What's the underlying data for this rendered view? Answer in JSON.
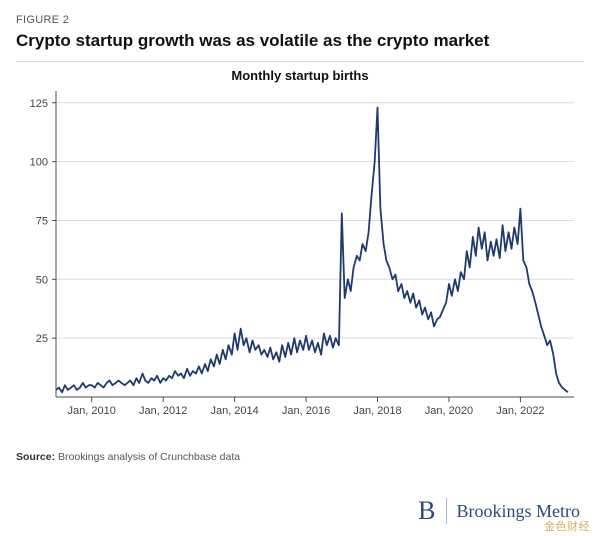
{
  "figure_label": "FIGURE 2",
  "title": "Crypto startup growth was as volatile as the crypto market",
  "chart": {
    "type": "line",
    "subtitle": "Monthly startup births",
    "x_label_year_prefix": "Jan, ",
    "x_ticks_years": [
      2010,
      2012,
      2014,
      2016,
      2018,
      2020,
      2022
    ],
    "x_range": [
      2009.0,
      2023.5
    ],
    "ylim": [
      0,
      130
    ],
    "y_ticks": [
      25,
      50,
      75,
      100,
      125
    ],
    "line_color": "#1f3a6e",
    "line_width": 1.8,
    "grid_color": "#d9dde2",
    "axis_color": "#4b4b4b",
    "background_color": "#ffffff",
    "tick_fontsize": 11,
    "subtitle_fontsize": 13,
    "series": [
      [
        2009.0,
        3
      ],
      [
        2009.08,
        4
      ],
      [
        2009.17,
        2
      ],
      [
        2009.25,
        5
      ],
      [
        2009.33,
        3
      ],
      [
        2009.42,
        4
      ],
      [
        2009.5,
        5
      ],
      [
        2009.58,
        3
      ],
      [
        2009.67,
        4
      ],
      [
        2009.75,
        6
      ],
      [
        2009.83,
        4
      ],
      [
        2009.92,
        5
      ],
      [
        2010.0,
        5
      ],
      [
        2010.08,
        4
      ],
      [
        2010.17,
        6
      ],
      [
        2010.25,
        5
      ],
      [
        2010.33,
        4
      ],
      [
        2010.42,
        6
      ],
      [
        2010.5,
        7
      ],
      [
        2010.58,
        5
      ],
      [
        2010.67,
        6
      ],
      [
        2010.75,
        7
      ],
      [
        2010.83,
        6
      ],
      [
        2010.92,
        5
      ],
      [
        2011.0,
        6
      ],
      [
        2011.08,
        7
      ],
      [
        2011.17,
        5
      ],
      [
        2011.25,
        8
      ],
      [
        2011.33,
        6
      ],
      [
        2011.42,
        10
      ],
      [
        2011.5,
        7
      ],
      [
        2011.58,
        6
      ],
      [
        2011.67,
        8
      ],
      [
        2011.75,
        7
      ],
      [
        2011.83,
        9
      ],
      [
        2011.92,
        6
      ],
      [
        2012.0,
        8
      ],
      [
        2012.08,
        7
      ],
      [
        2012.17,
        9
      ],
      [
        2012.25,
        8
      ],
      [
        2012.33,
        11
      ],
      [
        2012.42,
        9
      ],
      [
        2012.5,
        10
      ],
      [
        2012.58,
        8
      ],
      [
        2012.67,
        12
      ],
      [
        2012.75,
        9
      ],
      [
        2012.83,
        11
      ],
      [
        2012.92,
        10
      ],
      [
        2013.0,
        13
      ],
      [
        2013.08,
        10
      ],
      [
        2013.17,
        14
      ],
      [
        2013.25,
        11
      ],
      [
        2013.33,
        16
      ],
      [
        2013.42,
        13
      ],
      [
        2013.5,
        18
      ],
      [
        2013.58,
        14
      ],
      [
        2013.67,
        20
      ],
      [
        2013.75,
        16
      ],
      [
        2013.83,
        22
      ],
      [
        2013.92,
        18
      ],
      [
        2014.0,
        27
      ],
      [
        2014.08,
        20
      ],
      [
        2014.17,
        29
      ],
      [
        2014.25,
        22
      ],
      [
        2014.33,
        25
      ],
      [
        2014.42,
        19
      ],
      [
        2014.5,
        24
      ],
      [
        2014.58,
        20
      ],
      [
        2014.67,
        22
      ],
      [
        2014.75,
        18
      ],
      [
        2014.83,
        20
      ],
      [
        2014.92,
        17
      ],
      [
        2015.0,
        21
      ],
      [
        2015.08,
        16
      ],
      [
        2015.17,
        19
      ],
      [
        2015.25,
        15
      ],
      [
        2015.33,
        22
      ],
      [
        2015.42,
        17
      ],
      [
        2015.5,
        23
      ],
      [
        2015.58,
        18
      ],
      [
        2015.67,
        25
      ],
      [
        2015.75,
        19
      ],
      [
        2015.83,
        24
      ],
      [
        2015.92,
        20
      ],
      [
        2016.0,
        26
      ],
      [
        2016.08,
        20
      ],
      [
        2016.17,
        24
      ],
      [
        2016.25,
        19
      ],
      [
        2016.33,
        23
      ],
      [
        2016.42,
        18
      ],
      [
        2016.5,
        27
      ],
      [
        2016.58,
        22
      ],
      [
        2016.67,
        26
      ],
      [
        2016.75,
        21
      ],
      [
        2016.83,
        25
      ],
      [
        2016.92,
        22
      ],
      [
        2017.0,
        78
      ],
      [
        2017.08,
        42
      ],
      [
        2017.17,
        50
      ],
      [
        2017.25,
        45
      ],
      [
        2017.33,
        55
      ],
      [
        2017.42,
        60
      ],
      [
        2017.5,
        58
      ],
      [
        2017.58,
        65
      ],
      [
        2017.67,
        62
      ],
      [
        2017.75,
        70
      ],
      [
        2017.83,
        85
      ],
      [
        2017.92,
        100
      ],
      [
        2018.0,
        123
      ],
      [
        2018.08,
        80
      ],
      [
        2018.17,
        65
      ],
      [
        2018.25,
        58
      ],
      [
        2018.33,
        55
      ],
      [
        2018.42,
        50
      ],
      [
        2018.5,
        52
      ],
      [
        2018.58,
        45
      ],
      [
        2018.67,
        48
      ],
      [
        2018.75,
        42
      ],
      [
        2018.83,
        45
      ],
      [
        2018.92,
        40
      ],
      [
        2019.0,
        44
      ],
      [
        2019.08,
        38
      ],
      [
        2019.17,
        41
      ],
      [
        2019.25,
        35
      ],
      [
        2019.33,
        38
      ],
      [
        2019.42,
        33
      ],
      [
        2019.5,
        36
      ],
      [
        2019.58,
        30
      ],
      [
        2019.67,
        33
      ],
      [
        2019.75,
        34
      ],
      [
        2019.83,
        37
      ],
      [
        2019.92,
        40
      ],
      [
        2020.0,
        48
      ],
      [
        2020.08,
        43
      ],
      [
        2020.17,
        50
      ],
      [
        2020.25,
        45
      ],
      [
        2020.33,
        53
      ],
      [
        2020.42,
        50
      ],
      [
        2020.5,
        62
      ],
      [
        2020.58,
        55
      ],
      [
        2020.67,
        68
      ],
      [
        2020.75,
        60
      ],
      [
        2020.83,
        72
      ],
      [
        2020.92,
        63
      ],
      [
        2021.0,
        70
      ],
      [
        2021.08,
        58
      ],
      [
        2021.17,
        66
      ],
      [
        2021.25,
        60
      ],
      [
        2021.33,
        67
      ],
      [
        2021.42,
        59
      ],
      [
        2021.5,
        73
      ],
      [
        2021.58,
        62
      ],
      [
        2021.67,
        70
      ],
      [
        2021.75,
        63
      ],
      [
        2021.83,
        72
      ],
      [
        2021.92,
        65
      ],
      [
        2022.0,
        80
      ],
      [
        2022.08,
        58
      ],
      [
        2022.17,
        55
      ],
      [
        2022.25,
        48
      ],
      [
        2022.33,
        45
      ],
      [
        2022.42,
        40
      ],
      [
        2022.5,
        35
      ],
      [
        2022.58,
        30
      ],
      [
        2022.67,
        26
      ],
      [
        2022.75,
        22
      ],
      [
        2022.83,
        24
      ],
      [
        2022.92,
        18
      ],
      [
        2023.0,
        10
      ],
      [
        2023.08,
        6
      ],
      [
        2023.17,
        4
      ],
      [
        2023.25,
        3
      ],
      [
        2023.33,
        2
      ]
    ]
  },
  "source_label": "Source:",
  "source_text": "Brookings analysis of Crunchbase data",
  "brand_initial": "B",
  "brand_text": "Brookings Metro",
  "watermark": "金色财经"
}
